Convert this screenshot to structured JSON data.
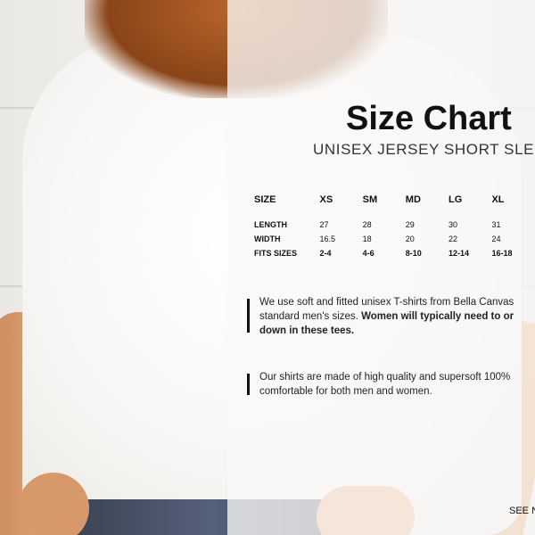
{
  "title": "Size Chart",
  "subtitle": "UNISEX JERSEY SHORT SLEEVE T",
  "table": {
    "headers": [
      "SIZE",
      "XS",
      "SM",
      "MD",
      "LG",
      "XL"
    ],
    "rows": [
      {
        "label": "LENGTH",
        "values": [
          "27",
          "28",
          "29",
          "30",
          "31"
        ]
      },
      {
        "label": "WIDTH",
        "values": [
          "16.5",
          "18",
          "20",
          "22",
          "24"
        ]
      },
      {
        "label": "FITS SIZES",
        "values": [
          "2-4",
          "4-6",
          "8-10",
          "12-14",
          "16-18"
        ]
      }
    ]
  },
  "notes": [
    {
      "line1": "We use soft and fitted unisex T-shirts from Bella Canvas",
      "line2_plain": "standard men's sizes. ",
      "line2_bold": "Women will typically need to or",
      "line3_bold": "down in these tees."
    },
    {
      "line1": "Our shirts are made of high quality and supersoft 100%",
      "line2_plain": "comfortable for both men and women."
    }
  ],
  "see_more": "SEE N"
}
